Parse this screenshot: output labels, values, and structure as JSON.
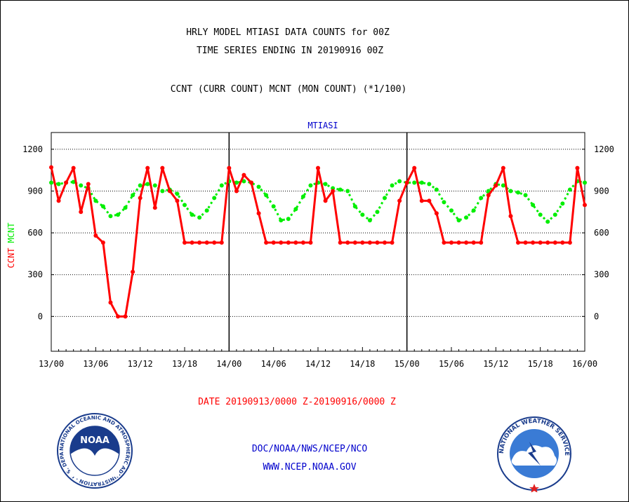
{
  "header": {
    "title_line1": "HRLY MODEL MTIASI DATA COUNTS for 00Z",
    "title_line2": "TIME SERIES ENDING IN 20190916 00Z",
    "subtitle": "CCNT (CURR COUNT) MCNT (MON COUNT) (*1/100)"
  },
  "footer": {
    "date_range": "DATE 20190913/0000 Z-20190916/0000 Z",
    "org_line": "DOC/NOAA/NWS/NCEP/NCO",
    "url_line": "WWW.NCEP.NOAA.GOV"
  },
  "logos": {
    "noaa_text": "NOAA",
    "noaa_ring_text": "NATIONAL OCEANIC AND ATMOSPHERIC ADMINISTRATION · U.S. DEPARTMENT OF COMMERCE",
    "nws_ring_text": "NATIONAL WEATHER SERVICE"
  },
  "colors": {
    "ccnt": "#ff0000",
    "mcnt": "#00ee00",
    "panel_title": "#0000cc",
    "footer_link": "#0000cc",
    "date_text": "#ff0000"
  },
  "chart_data": {
    "type": "line",
    "panel_title": "MTIASI",
    "ylabel_ccnt": "CCNT",
    "ylabel_mcnt": "MCNT",
    "ylim": [
      -250,
      1320
    ],
    "yticks": [
      0,
      300,
      600,
      900,
      1200
    ],
    "xlim_hours": [
      0,
      72
    ],
    "xticks": [
      {
        "h": 0,
        "label": "13/00"
      },
      {
        "h": 6,
        "label": "13/06"
      },
      {
        "h": 12,
        "label": "13/12"
      },
      {
        "h": 18,
        "label": "13/18"
      },
      {
        "h": 24,
        "label": "14/00"
      },
      {
        "h": 30,
        "label": "14/06"
      },
      {
        "h": 36,
        "label": "14/12"
      },
      {
        "h": 42,
        "label": "14/18"
      },
      {
        "h": 48,
        "label": "15/00"
      },
      {
        "h": 54,
        "label": "15/06"
      },
      {
        "h": 60,
        "label": "15/12"
      },
      {
        "h": 66,
        "label": "15/18"
      },
      {
        "h": 72,
        "label": "16/00"
      }
    ],
    "day_dividers_hours": [
      24,
      48
    ],
    "grid": true,
    "series": [
      {
        "name": "CCNT",
        "color": "#ff0000",
        "values": [
          1070,
          830,
          960,
          1065,
          750,
          950,
          580,
          530,
          100,
          0,
          0,
          320,
          850,
          1065,
          780,
          1065,
          900,
          830,
          530,
          530,
          530,
          530,
          530,
          530,
          1065,
          900,
          1015,
          960,
          740,
          530,
          530,
          530,
          530,
          530,
          530,
          530,
          1065,
          830,
          900,
          530,
          530,
          530,
          530,
          530,
          530,
          530,
          530,
          830,
          960,
          1065,
          830,
          830,
          740,
          530,
          530,
          530,
          530,
          530,
          530,
          870,
          940,
          1065,
          720,
          530,
          530,
          530,
          530,
          530,
          530,
          530,
          530,
          1065,
          800
        ]
      },
      {
        "name": "MCNT",
        "color": "#00ee00",
        "values": [
          960,
          950,
          960,
          965,
          940,
          920,
          830,
          790,
          720,
          730,
          780,
          870,
          940,
          950,
          940,
          900,
          910,
          880,
          800,
          730,
          710,
          760,
          850,
          940,
          970,
          960,
          970,
          960,
          930,
          870,
          790,
          690,
          700,
          770,
          860,
          940,
          960,
          950,
          920,
          910,
          900,
          790,
          730,
          690,
          750,
          850,
          940,
          970,
          960,
          960,
          960,
          950,
          910,
          820,
          760,
          690,
          710,
          760,
          850,
          900,
          950,
          940,
          900,
          890,
          870,
          800,
          730,
          680,
          730,
          810,
          910,
          970,
          960
        ]
      }
    ]
  }
}
